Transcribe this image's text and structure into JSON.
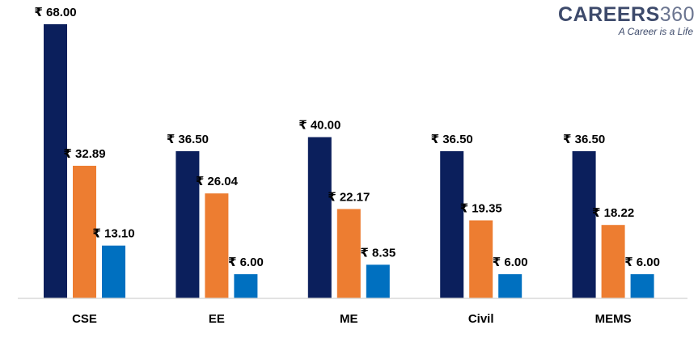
{
  "logo": {
    "brand_text": "CAREERS",
    "brand_number": "360",
    "tagline": "A Career is a Life"
  },
  "chart_data": {
    "type": "bar",
    "title": "",
    "xlabel": "",
    "ylabel": "",
    "ylim": [
      0,
      72
    ],
    "grid": false,
    "legend": "none",
    "value_prefix": "₹ ",
    "categories": [
      "CSE",
      "EE",
      "ME",
      "Civil",
      "MEMS"
    ],
    "series": [
      {
        "name": "Series 1",
        "color": "#0b1f5c",
        "values": [
          68.0,
          36.5,
          40.0,
          36.5,
          36.5
        ]
      },
      {
        "name": "Series 2",
        "color": "#ed7d31",
        "values": [
          32.89,
          26.04,
          22.17,
          19.35,
          18.22
        ]
      },
      {
        "name": "Series 3",
        "color": "#0070c0",
        "values": [
          13.1,
          6.0,
          8.35,
          6.0,
          6.0
        ]
      }
    ]
  }
}
